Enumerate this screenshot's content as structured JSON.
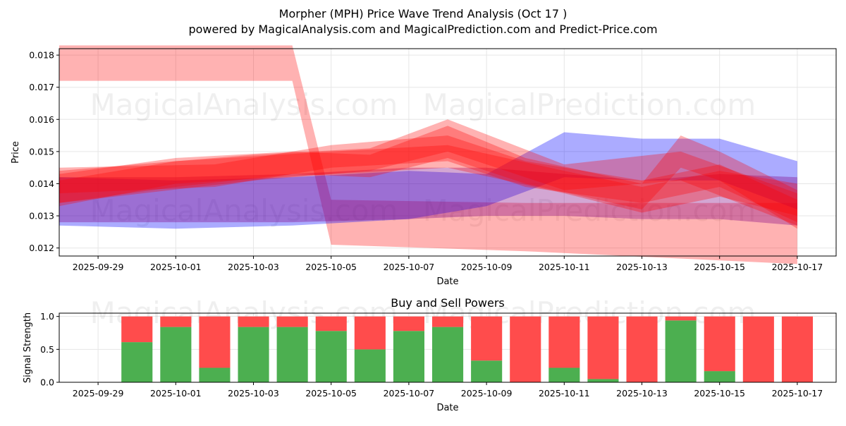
{
  "title_line1": "Morpher (MPH) Price Wave Trend Analysis (Oct 17 )",
  "title_line2": "powered by MagicalAnalysis.com and MagicalPrediction.com and Predict-Price.com",
  "watermarks": [
    "MagicalAnalysis.com",
    "MagicalPrediction.com"
  ],
  "colors": {
    "red_band": "#ff0000",
    "blue_band": "#0000ff",
    "purple_band": "#800080",
    "buy": "#4caf50",
    "sell": "#ff4c4c",
    "grid": "#e6e6e6"
  },
  "chart_data": [
    {
      "type": "area",
      "title": "",
      "xlabel": "Date",
      "ylabel": "Price",
      "xlim": [
        "2025-09-28",
        "2025-10-18"
      ],
      "ylim": [
        0.01175,
        0.0182
      ],
      "grid": true,
      "x_ticks": [
        "2025-09-29",
        "2025-10-01",
        "2025-10-03",
        "2025-10-05",
        "2025-10-07",
        "2025-10-09",
        "2025-10-11",
        "2025-10-13",
        "2025-10-15",
        "2025-10-17"
      ],
      "y_ticks": [
        0.012,
        0.013,
        0.014,
        0.015,
        0.016,
        0.017,
        0.018
      ],
      "series": [
        {
          "color": "red",
          "x": [
            "2025-09-28",
            "2025-10-04",
            "2025-10-05",
            "2025-10-10",
            "2025-10-17"
          ],
          "upper": [
            0.0183,
            0.0183,
            0.0135,
            0.0134,
            0.0134
          ],
          "lower": [
            0.0172,
            0.0172,
            0.0121,
            0.0119,
            0.0115
          ]
        },
        {
          "color": "blue",
          "x": [
            "2025-09-28",
            "2025-10-01",
            "2025-10-04",
            "2025-10-07",
            "2025-10-09",
            "2025-10-11",
            "2025-10-13",
            "2025-10-15",
            "2025-10-17"
          ],
          "upper": [
            0.0142,
            0.0141,
            0.0142,
            0.0144,
            0.0143,
            0.0156,
            0.0154,
            0.0154,
            0.0147
          ],
          "lower": [
            0.0127,
            0.0126,
            0.0127,
            0.0129,
            0.0133,
            0.0142,
            0.0141,
            0.0141,
            0.0132
          ]
        },
        {
          "color": "purple",
          "x": [
            "2025-09-28",
            "2025-10-01",
            "2025-10-04",
            "2025-10-07",
            "2025-10-09",
            "2025-10-11",
            "2025-10-13",
            "2025-10-15",
            "2025-10-17"
          ],
          "upper": [
            0.0142,
            0.0142,
            0.0143,
            0.0145,
            0.0145,
            0.0143,
            0.0141,
            0.0143,
            0.0142
          ],
          "lower": [
            0.0128,
            0.0128,
            0.0128,
            0.0129,
            0.013,
            0.013,
            0.0129,
            0.0129,
            0.0127
          ]
        },
        {
          "color": "red",
          "x": [
            "2025-09-28",
            "2025-10-01",
            "2025-10-04",
            "2025-10-06",
            "2025-10-08",
            "2025-10-10",
            "2025-10-13",
            "2025-10-14",
            "2025-10-15",
            "2025-10-17"
          ],
          "upper": [
            0.0143,
            0.0148,
            0.015,
            0.0149,
            0.0158,
            0.0148,
            0.014,
            0.0155,
            0.015,
            0.0138
          ],
          "lower": [
            0.0134,
            0.0139,
            0.0143,
            0.0142,
            0.0148,
            0.014,
            0.0132,
            0.0145,
            0.0141,
            0.0126
          ]
        },
        {
          "color": "red",
          "x": [
            "2025-09-28",
            "2025-10-02",
            "2025-10-05",
            "2025-10-08",
            "2025-10-10",
            "2025-10-13",
            "2025-10-15",
            "2025-10-17"
          ],
          "upper": [
            0.0145,
            0.0146,
            0.0152,
            0.0155,
            0.0147,
            0.0141,
            0.0146,
            0.0135
          ],
          "lower": [
            0.0137,
            0.0139,
            0.0145,
            0.0147,
            0.0139,
            0.0134,
            0.0139,
            0.0128
          ]
        },
        {
          "color": "red",
          "x": [
            "2025-09-28",
            "2025-10-03",
            "2025-10-06",
            "2025-10-08",
            "2025-10-11",
            "2025-10-14",
            "2025-10-17"
          ],
          "upper": [
            0.0144,
            0.0149,
            0.0151,
            0.016,
            0.0146,
            0.015,
            0.0137
          ],
          "lower": [
            0.0134,
            0.0141,
            0.0144,
            0.015,
            0.0138,
            0.0141,
            0.0127
          ]
        },
        {
          "color": "red",
          "x": [
            "2025-09-28",
            "2025-10-01",
            "2025-10-05",
            "2025-10-08",
            "2025-10-11",
            "2025-10-13",
            "2025-10-15",
            "2025-10-17"
          ],
          "upper": [
            0.0141,
            0.0147,
            0.015,
            0.0152,
            0.0144,
            0.0139,
            0.0144,
            0.014
          ],
          "lower": [
            0.0133,
            0.014,
            0.0143,
            0.0145,
            0.0137,
            0.0131,
            0.0136,
            0.013
          ]
        }
      ]
    },
    {
      "type": "bar",
      "title": "Buy and Sell Powers",
      "xlabel": "Date",
      "ylabel": "Signal Strength",
      "xlim": [
        "2025-09-28",
        "2025-10-18"
      ],
      "ylim": [
        0,
        1.05
      ],
      "grid": true,
      "x_ticks": [
        "2025-09-29",
        "2025-10-01",
        "2025-10-03",
        "2025-10-05",
        "2025-10-07",
        "2025-10-09",
        "2025-10-11",
        "2025-10-13",
        "2025-10-15",
        "2025-10-17"
      ],
      "y_ticks": [
        0.0,
        0.5,
        1.0
      ],
      "categories": [
        "2025-09-30",
        "2025-10-01",
        "2025-10-02",
        "2025-10-03",
        "2025-10-04",
        "2025-10-05",
        "2025-10-06",
        "2025-10-07",
        "2025-10-08",
        "2025-10-09",
        "2025-10-10",
        "2025-10-11",
        "2025-10-12",
        "2025-10-13",
        "2025-10-14",
        "2025-10-15",
        "2025-10-16",
        "2025-10-17"
      ],
      "series": [
        {
          "values": [
            0.61,
            0.84,
            0.22,
            0.84,
            0.84,
            0.78,
            0.5,
            0.78,
            0.84,
            0.33,
            0.0,
            0.22,
            0.05,
            0.0,
            0.94,
            0.17,
            0.0,
            0.0
          ]
        },
        {
          "values": [
            0.39,
            0.16,
            0.78,
            0.16,
            0.16,
            0.22,
            0.5,
            0.22,
            0.16,
            0.67,
            1.0,
            0.78,
            0.95,
            1.0,
            0.06,
            0.83,
            1.0,
            1.0
          ]
        }
      ]
    }
  ]
}
